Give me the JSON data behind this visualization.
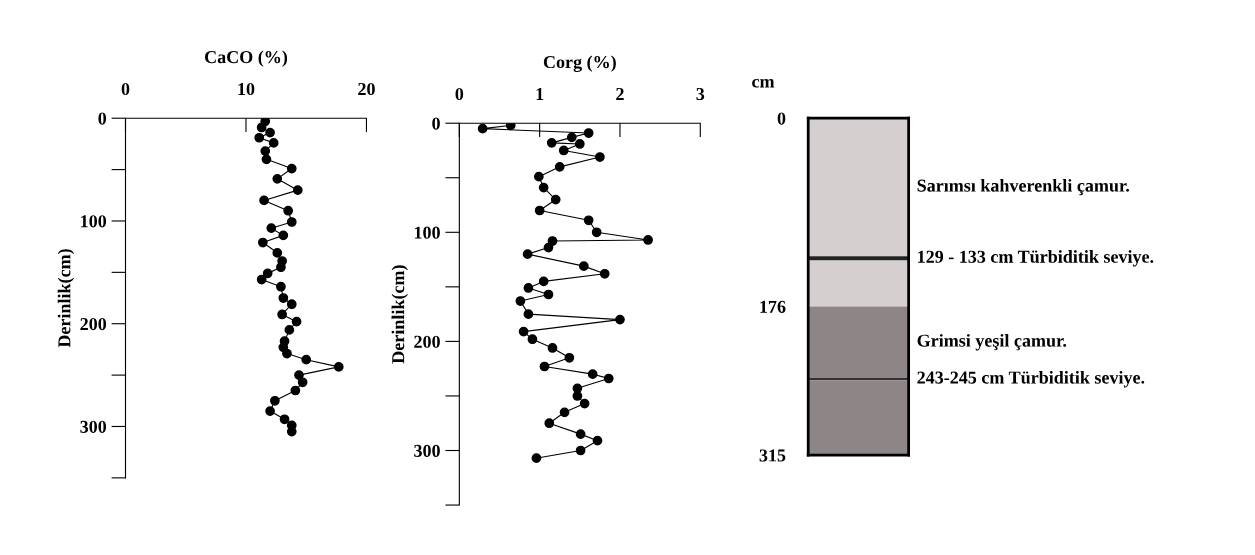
{
  "chart_data": [
    {
      "type": "line",
      "xlabel": "CaCO (%)",
      "ylabel": "Derinlik(cm)",
      "marker": "circle",
      "line_style": "solid",
      "grid": false,
      "legend": false,
      "xlim": [
        0,
        20
      ],
      "xticks": [
        0,
        10,
        20
      ],
      "ylim": [
        350,
        0
      ],
      "yticks": [
        0,
        {
          "value": 50,
          "label": null
        },
        100,
        {
          "value": 150,
          "label": null
        },
        200,
        {
          "value": 250,
          "label": null
        },
        300,
        {
          "value": 350,
          "label": null
        }
      ],
      "series": [
        {
          "color": "#000000",
          "x": [
            11.6,
            11.3,
            12.0,
            11.1,
            12.3,
            11.6,
            11.7,
            13.8,
            12.6,
            14.3,
            11.5,
            13.5,
            13.8,
            12.1,
            13.1,
            11.4,
            12.6,
            13.0,
            12.9,
            11.8,
            11.3,
            12.9,
            13.1,
            13.8,
            13.0,
            14.2,
            13.6,
            13.2,
            13.1,
            13.4,
            15.0,
            17.7,
            14.4,
            14.7,
            14.1,
            12.4,
            12.0,
            13.2,
            13.8,
            13.8
          ],
          "values": [
            3,
            9,
            14,
            19,
            24,
            32,
            40,
            49,
            59,
            70,
            80,
            90,
            101,
            107,
            114,
            121,
            131,
            139,
            145,
            151,
            157,
            164,
            175,
            181,
            191,
            198,
            206,
            217,
            223,
            229,
            235,
            242,
            250,
            257,
            265,
            275,
            285,
            293,
            299,
            305
          ]
        }
      ]
    },
    {
      "type": "line",
      "xlabel": "Corg (%)",
      "ylabel": "Derinlik(cm)",
      "marker": "circle",
      "line_style": "solid",
      "grid": false,
      "legend": false,
      "xlim": [
        0,
        3
      ],
      "xticks": [
        0,
        1,
        2,
        3
      ],
      "ylim": [
        350,
        0
      ],
      "yticks": [
        0,
        {
          "value": 50,
          "label": null
        },
        100,
        {
          "value": 150,
          "label": null
        },
        200,
        {
          "value": 250,
          "label": null
        },
        300,
        {
          "value": 350,
          "label": null
        }
      ],
      "series": [
        {
          "color": "#000000",
          "x": [
            0.64,
            0.29,
            1.61,
            1.4,
            1.15,
            1.5,
            1.3,
            1.75,
            1.25,
            0.99,
            1.05,
            1.2,
            1.0,
            1.61,
            1.71,
            2.35,
            1.16,
            1.11,
            0.85,
            1.55,
            1.81,
            1.05,
            0.86,
            1.11,
            0.76,
            0.86,
            2.0,
            0.8,
            0.91,
            1.16,
            1.37,
            1.06,
            1.66,
            1.86,
            1.47,
            1.47,
            1.56,
            1.31,
            1.12,
            1.51,
            1.72,
            1.51,
            0.96
          ],
          "values": [
            2,
            5,
            9,
            13,
            18,
            19,
            25,
            31,
            40,
            49,
            59,
            70,
            80,
            89,
            100,
            107,
            108,
            114,
            120,
            131,
            138,
            145,
            151,
            157,
            163,
            175,
            180,
            191,
            198,
            206,
            215,
            223,
            230,
            234,
            243,
            250,
            257,
            265,
            275,
            285,
            291,
            300,
            307
          ]
        }
      ]
    },
    {
      "type": "bar",
      "stacked": true,
      "ylabel": "cm",
      "categories": [
        null
      ],
      "ylim": [
        315,
        0
      ],
      "yticks": [
        0,
        176,
        315
      ],
      "series": [
        {
          "name": "Sarımsı kahverenkli çamur.",
          "color": "#d6cfd0",
          "values": [
            129
          ]
        },
        {
          "name": "129 - 133 cm Türbiditik seviye.",
          "color": "#222222",
          "values": [
            4
          ]
        },
        {
          "color": "#d6cfd0",
          "values": [
            43
          ]
        },
        {
          "name": "Grimsi yeşil çamur.",
          "color": "#8e8587",
          "values": [
            67
          ]
        },
        {
          "name": "243-245 cm Türbiditik seviye.",
          "color": "#333333",
          "values": [
            2
          ]
        },
        {
          "color": "#8e8587",
          "values": [
            70
          ]
        }
      ]
    }
  ]
}
